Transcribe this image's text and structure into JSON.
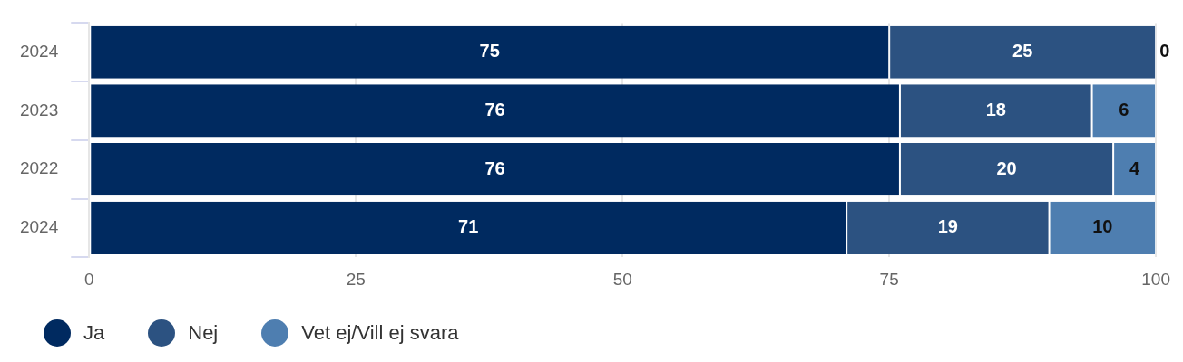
{
  "chart_data": {
    "type": "bar",
    "orientation": "horizontal",
    "stacked": true,
    "categories": [
      "2024",
      "2023",
      "2022",
      "2024"
    ],
    "series": [
      {
        "name": "Ja",
        "color": "#002a60",
        "values": [
          75,
          76,
          76,
          71
        ]
      },
      {
        "name": "Nej",
        "color": "#2c5281",
        "values": [
          25,
          18,
          20,
          19
        ]
      },
      {
        "name": "Vet ej/Vill ej svara",
        "color": "#4e7eb0",
        "values": [
          0,
          6,
          4,
          10
        ]
      }
    ],
    "xlim": [
      0,
      100
    ],
    "xticks": [
      0,
      25,
      50,
      75,
      100
    ],
    "grid": "x",
    "legend": "bottom left",
    "data_labels": true
  }
}
